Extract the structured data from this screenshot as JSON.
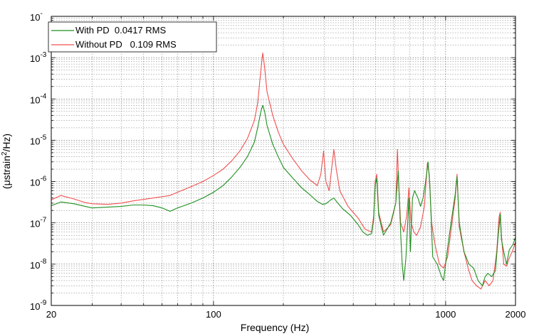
{
  "chart_data": {
    "type": "line",
    "xlabel": "Frequency (Hz)",
    "ylabel_prefix": "(μstrain",
    "ylabel_sup": "2",
    "ylabel_suffix": "/Hz)",
    "x_scale": "log",
    "y_scale": "log",
    "xlim": [
      20,
      2000
    ],
    "ylim": [
      1e-09,
      0.01
    ],
    "grid": true,
    "legend_position": "top-left",
    "x_ticks": [
      {
        "value": 20,
        "label": "20"
      },
      {
        "value": 100,
        "label": "100"
      },
      {
        "value": 1000,
        "label": "1000"
      },
      {
        "value": 2000,
        "label": "2000"
      }
    ],
    "y_ticks": [
      {
        "value": 1e-09,
        "base": "10",
        "exp": "-9"
      },
      {
        "value": 1e-08,
        "base": "10",
        "exp": "-8"
      },
      {
        "value": 1e-07,
        "base": "10",
        "exp": "-7"
      },
      {
        "value": 1e-06,
        "base": "10",
        "exp": "-6"
      },
      {
        "value": 1e-05,
        "base": "10",
        "exp": "-5"
      },
      {
        "value": 0.0001,
        "base": "10",
        "exp": "-4"
      },
      {
        "value": 0.001,
        "base": "10",
        "exp": "-3"
      },
      {
        "value": 0.01,
        "base": "10",
        "exp": "-"
      }
    ],
    "series": [
      {
        "name": "With PD  0.0417 RMS",
        "color": "#1f8f1f",
        "points": [
          [
            20,
            2.6e-07
          ],
          [
            22,
            3.2e-07
          ],
          [
            25,
            2.9e-07
          ],
          [
            28,
            2.5e-07
          ],
          [
            30,
            2.3e-07
          ],
          [
            35,
            2.4e-07
          ],
          [
            40,
            2.5e-07
          ],
          [
            45,
            2.7e-07
          ],
          [
            50,
            2.7e-07
          ],
          [
            55,
            2.6e-07
          ],
          [
            60,
            2.3e-07
          ],
          [
            65,
            1.9e-07
          ],
          [
            70,
            2.3e-07
          ],
          [
            80,
            3e-07
          ],
          [
            90,
            4e-07
          ],
          [
            100,
            5.5e-07
          ],
          [
            110,
            8e-07
          ],
          [
            120,
            1.3e-06
          ],
          [
            130,
            2.2e-06
          ],
          [
            140,
            4e-06
          ],
          [
            150,
            9e-06
          ],
          [
            155,
            2e-05
          ],
          [
            160,
            5e-05
          ],
          [
            163,
            7e-05
          ],
          [
            166,
            5e-05
          ],
          [
            170,
            2.3e-05
          ],
          [
            180,
            8e-06
          ],
          [
            190,
            4e-06
          ],
          [
            200,
            2.2e-06
          ],
          [
            220,
            1.2e-06
          ],
          [
            240,
            7e-07
          ],
          [
            260,
            4.8e-07
          ],
          [
            280,
            3.3e-07
          ],
          [
            295,
            2.8e-07
          ],
          [
            305,
            2.9e-07
          ],
          [
            320,
            3.6e-07
          ],
          [
            330,
            4e-07
          ],
          [
            340,
            3.2e-07
          ],
          [
            360,
            2.2e-07
          ],
          [
            390,
            1.5e-07
          ],
          [
            420,
            9e-08
          ],
          [
            440,
            6e-08
          ],
          [
            460,
            5e-08
          ],
          [
            480,
            5.5e-08
          ],
          [
            490,
            1.2e-07
          ],
          [
            497,
            8e-07
          ],
          [
            505,
            1.2e-06
          ],
          [
            515,
            1.5e-07
          ],
          [
            540,
            5e-08
          ],
          [
            580,
            1e-07
          ],
          [
            610,
            3e-07
          ],
          [
            625,
            1.8e-06
          ],
          [
            640,
            6e-08
          ],
          [
            650,
            1e-08
          ],
          [
            660,
            4e-09
          ],
          [
            675,
            1.5e-08
          ],
          [
            695,
            4e-07
          ],
          [
            705,
            2e-08
          ],
          [
            720,
            4e-07
          ],
          [
            735,
            6e-07
          ],
          [
            760,
            4e-07
          ],
          [
            780,
            2.5e-07
          ],
          [
            800,
            4e-07
          ],
          [
            820,
            1e-06
          ],
          [
            840,
            3e-06
          ],
          [
            855,
            8e-07
          ],
          [
            880,
            1.5e-08
          ],
          [
            920,
            1e-08
          ],
          [
            960,
            5e-09
          ],
          [
            980,
            4e-09
          ],
          [
            1020,
            2.5e-08
          ],
          [
            1060,
            1.2e-07
          ],
          [
            1100,
            5e-07
          ],
          [
            1120,
            1.3e-06
          ],
          [
            1145,
            1e-07
          ],
          [
            1200,
            2e-08
          ],
          [
            1260,
            1e-08
          ],
          [
            1320,
            8e-09
          ],
          [
            1380,
            4e-09
          ],
          [
            1440,
            3e-09
          ],
          [
            1480,
            5e-09
          ],
          [
            1520,
            6e-09
          ],
          [
            1580,
            5e-09
          ],
          [
            1640,
            7e-09
          ],
          [
            1680,
            4e-08
          ],
          [
            1720,
            1.6e-07
          ],
          [
            1740,
            4e-08
          ],
          [
            1780,
            2e-08
          ],
          [
            1830,
            1e-08
          ],
          [
            1880,
            2.2e-08
          ],
          [
            1950,
            3e-08
          ],
          [
            2000,
            4.5e-08
          ]
        ]
      },
      {
        "name": "Without PD   0.109 RMS",
        "color": "#f05050",
        "points": [
          [
            20,
            3.6e-07
          ],
          [
            22,
            4.6e-07
          ],
          [
            25,
            3.8e-07
          ],
          [
            28,
            3.1e-07
          ],
          [
            30,
            2.9e-07
          ],
          [
            35,
            2.8e-07
          ],
          [
            40,
            3e-07
          ],
          [
            45,
            3.4e-07
          ],
          [
            50,
            3.7e-07
          ],
          [
            55,
            4e-07
          ],
          [
            60,
            4.3e-07
          ],
          [
            65,
            4.6e-07
          ],
          [
            70,
            5.5e-07
          ],
          [
            80,
            7.5e-07
          ],
          [
            90,
            1e-06
          ],
          [
            100,
            1.4e-06
          ],
          [
            110,
            2e-06
          ],
          [
            120,
            3.2e-06
          ],
          [
            130,
            5.5e-06
          ],
          [
            140,
            1.1e-05
          ],
          [
            150,
            3e-05
          ],
          [
            155,
            8e-05
          ],
          [
            160,
            0.0005
          ],
          [
            163,
            0.0013
          ],
          [
            166,
            0.0006
          ],
          [
            170,
            0.00015
          ],
          [
            180,
            4e-05
          ],
          [
            190,
            1.6e-05
          ],
          [
            200,
            8e-06
          ],
          [
            220,
            3.5e-06
          ],
          [
            240,
            1.8e-06
          ],
          [
            260,
            1.1e-06
          ],
          [
            280,
            8e-07
          ],
          [
            290,
            1.5e-06
          ],
          [
            298,
            5.5e-06
          ],
          [
            305,
            1e-06
          ],
          [
            315,
            6e-07
          ],
          [
            322,
            1.8e-06
          ],
          [
            330,
            6e-06
          ],
          [
            338,
            2e-06
          ],
          [
            350,
            6e-07
          ],
          [
            380,
            2.5e-07
          ],
          [
            420,
            1.3e-07
          ],
          [
            450,
            7e-08
          ],
          [
            480,
            6e-08
          ],
          [
            490,
            1.5e-07
          ],
          [
            497,
            1e-06
          ],
          [
            505,
            1.5e-06
          ],
          [
            515,
            1.8e-07
          ],
          [
            540,
            6e-08
          ],
          [
            580,
            9e-08
          ],
          [
            610,
            3e-07
          ],
          [
            620,
            6e-06
          ],
          [
            630,
            6e-07
          ],
          [
            640,
            1e-07
          ],
          [
            660,
            6e-08
          ],
          [
            680,
            1.5e-07
          ],
          [
            695,
            7e-07
          ],
          [
            710,
            1e-07
          ],
          [
            730,
            6e-08
          ],
          [
            750,
            5e-08
          ],
          [
            780,
            8e-08
          ],
          [
            810,
            2.5e-07
          ],
          [
            835,
            2.8e-06
          ],
          [
            850,
            1.5e-06
          ],
          [
            870,
            1e-07
          ],
          [
            900,
            3e-08
          ],
          [
            940,
            1e-08
          ],
          [
            980,
            8e-09
          ],
          [
            1020,
            1.5e-08
          ],
          [
            1060,
            8e-08
          ],
          [
            1100,
            4e-07
          ],
          [
            1120,
            1.5e-06
          ],
          [
            1145,
            8e-08
          ],
          [
            1200,
            2e-08
          ],
          [
            1250,
            8e-09
          ],
          [
            1300,
            4e-09
          ],
          [
            1360,
            3e-09
          ],
          [
            1420,
            2.5e-09
          ],
          [
            1480,
            4e-09
          ],
          [
            1540,
            3e-09
          ],
          [
            1600,
            4e-09
          ],
          [
            1660,
            2e-08
          ],
          [
            1700,
            1.4e-07
          ],
          [
            1720,
            1.8e-07
          ],
          [
            1740,
            5e-08
          ],
          [
            1780,
            1e-08
          ],
          [
            1830,
            9e-09
          ],
          [
            1880,
            1.4e-08
          ],
          [
            1950,
            2.2e-08
          ],
          [
            2000,
            3.5e-08
          ]
        ]
      }
    ]
  }
}
